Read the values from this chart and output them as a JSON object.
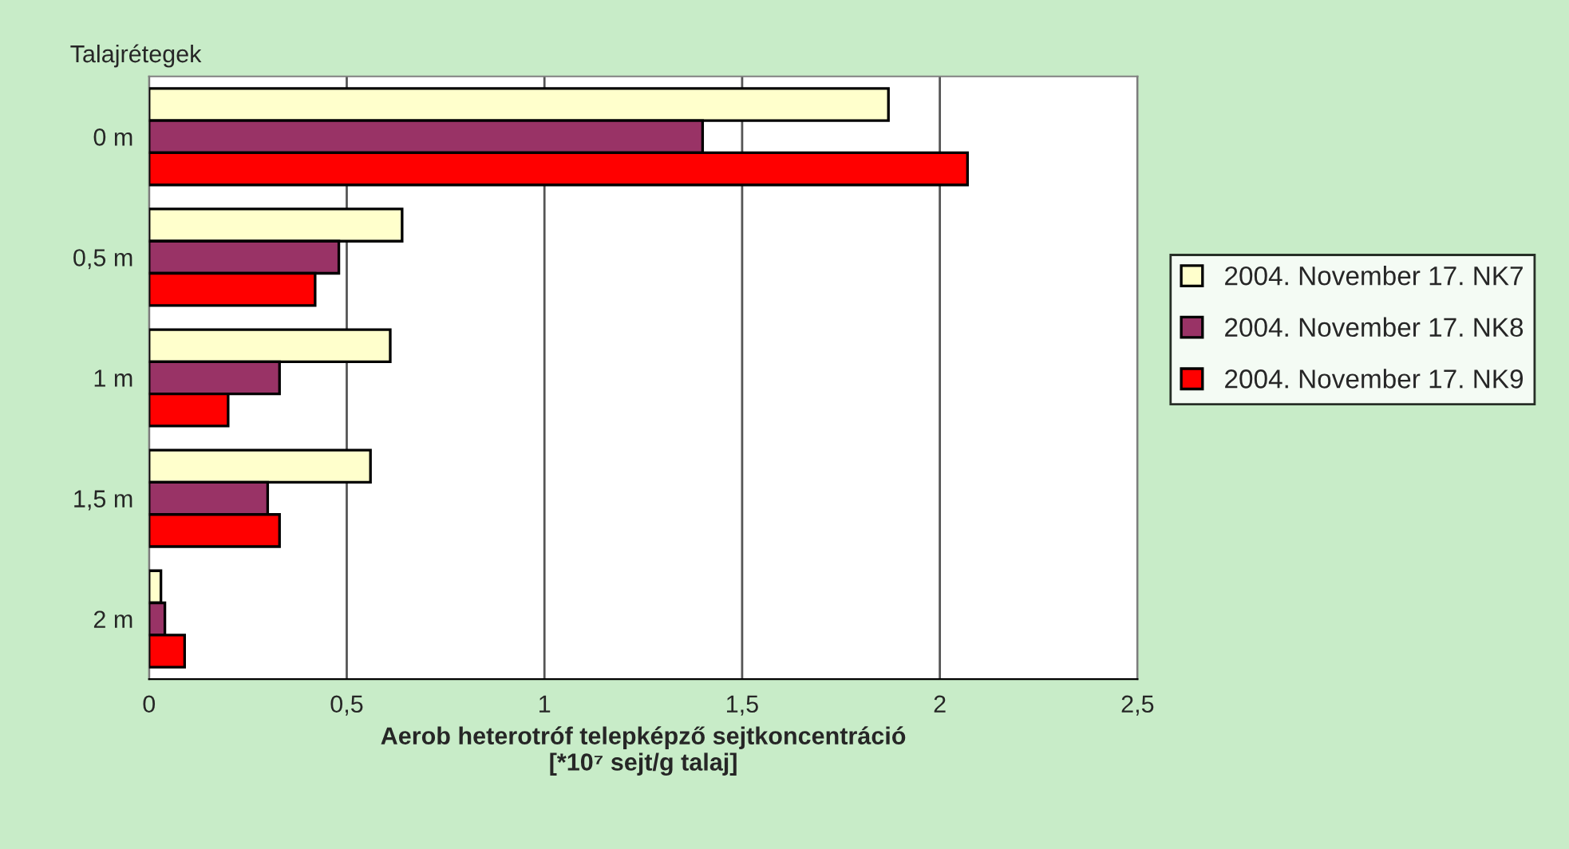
{
  "chart_data": {
    "type": "bar",
    "orientation": "horizontal",
    "ylabel": "Talajrétegek",
    "xlabel": "Aerob heterotróf telepképző sejtkoncentráció\n[*10⁷ sejt/g talaj]",
    "categories": [
      "0 m",
      "0,5 m",
      "1 m",
      "1,5 m",
      "2 m"
    ],
    "series": [
      {
        "name": "2004. November 17. NK7",
        "color": "#ffffcc",
        "values": [
          1.87,
          0.64,
          0.61,
          0.56,
          0.03
        ]
      },
      {
        "name": "2004. November 17. NK8",
        "color": "#993366",
        "values": [
          1.4,
          0.48,
          0.33,
          0.3,
          0.04
        ]
      },
      {
        "name": "2004. November 17. NK9",
        "color": "#ff0000",
        "values": [
          2.07,
          0.42,
          0.2,
          0.33,
          0.09
        ]
      }
    ],
    "xlim": [
      0,
      2.5
    ],
    "xticks": [
      0,
      {
        "value": 0.5,
        "label": "0,5"
      },
      1,
      {
        "value": 1.5,
        "label": "1,5"
      },
      2,
      {
        "value": 2.5,
        "label": "2,5"
      }
    ],
    "grid": "x",
    "legend": "right"
  }
}
